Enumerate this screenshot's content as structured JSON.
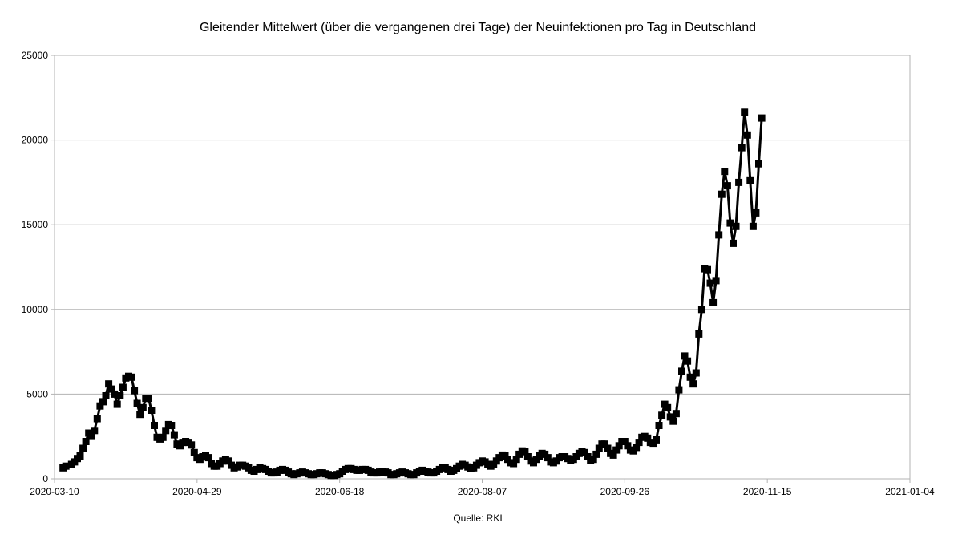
{
  "chart_data": {
    "type": "line",
    "title": "Gleitender Mittelwert (über die vergangenen drei Tage) der Neuinfektionen pro Tag in Deutschland",
    "xlabel": "",
    "ylabel": "",
    "source": "Quelle: RKI",
    "xlim": [
      "2020-03-10",
      "2021-01-04"
    ],
    "ylim": [
      0,
      25000
    ],
    "x_ticks": [
      "2020-03-10",
      "2020-04-29",
      "2020-06-18",
      "2020-08-07",
      "2020-09-26",
      "2020-11-15",
      "2021-01-04"
    ],
    "y_ticks": [
      0,
      5000,
      10000,
      15000,
      20000,
      25000
    ],
    "grid": {
      "horizontal": true,
      "vertical": false
    },
    "legend": "none",
    "series_color": "#000000",
    "series": [
      {
        "values": [
          {
            "x": "2020-03-13",
            "y": 650
          },
          {
            "x": "2020-03-14",
            "y": 750
          },
          {
            "x": "2020-03-16",
            "y": 850
          },
          {
            "x": "2020-03-17",
            "y": 1000
          },
          {
            "x": "2020-03-18",
            "y": 1200
          },
          {
            "x": "2020-03-19",
            "y": 1350
          },
          {
            "x": "2020-03-20",
            "y": 1800
          },
          {
            "x": "2020-03-21",
            "y": 2200
          },
          {
            "x": "2020-03-22",
            "y": 2700
          },
          {
            "x": "2020-03-23",
            "y": 2550
          },
          {
            "x": "2020-03-24",
            "y": 2850
          },
          {
            "x": "2020-03-25",
            "y": 3550
          },
          {
            "x": "2020-03-26",
            "y": 4300
          },
          {
            "x": "2020-03-27",
            "y": 4550
          },
          {
            "x": "2020-03-28",
            "y": 4900
          },
          {
            "x": "2020-03-29",
            "y": 5600
          },
          {
            "x": "2020-03-30",
            "y": 5300
          },
          {
            "x": "2020-03-31",
            "y": 5000
          },
          {
            "x": "2020-04-01",
            "y": 4400
          },
          {
            "x": "2020-04-02",
            "y": 4900
          },
          {
            "x": "2020-04-03",
            "y": 5400
          },
          {
            "x": "2020-04-04",
            "y": 5950
          },
          {
            "x": "2020-04-05",
            "y": 6050
          },
          {
            "x": "2020-04-06",
            "y": 6000
          },
          {
            "x": "2020-04-07",
            "y": 5200
          },
          {
            "x": "2020-04-08",
            "y": 4450
          },
          {
            "x": "2020-04-09",
            "y": 3800
          },
          {
            "x": "2020-04-10",
            "y": 4200
          },
          {
            "x": "2020-04-11",
            "y": 4750
          },
          {
            "x": "2020-04-12",
            "y": 4750
          },
          {
            "x": "2020-04-13",
            "y": 4050
          },
          {
            "x": "2020-04-14",
            "y": 3150
          },
          {
            "x": "2020-04-15",
            "y": 2450
          },
          {
            "x": "2020-04-16",
            "y": 2350
          },
          {
            "x": "2020-04-17",
            "y": 2450
          },
          {
            "x": "2020-04-18",
            "y": 2850
          },
          {
            "x": "2020-04-19",
            "y": 3200
          },
          {
            "x": "2020-04-20",
            "y": 3150
          },
          {
            "x": "2020-04-21",
            "y": 2600
          },
          {
            "x": "2020-04-22",
            "y": 2050
          },
          {
            "x": "2020-04-23",
            "y": 1950
          },
          {
            "x": "2020-04-24",
            "y": 2150
          },
          {
            "x": "2020-04-25",
            "y": 2200
          },
          {
            "x": "2020-04-26",
            "y": 2150
          },
          {
            "x": "2020-04-27",
            "y": 2000
          },
          {
            "x": "2020-04-28",
            "y": 1550
          },
          {
            "x": "2020-04-29",
            "y": 1250
          },
          {
            "x": "2020-04-30",
            "y": 1150
          },
          {
            "x": "2020-05-01",
            "y": 1300
          },
          {
            "x": "2020-05-02",
            "y": 1350
          },
          {
            "x": "2020-05-03",
            "y": 1250
          },
          {
            "x": "2020-05-04",
            "y": 900
          },
          {
            "x": "2020-05-05",
            "y": 750
          },
          {
            "x": "2020-05-06",
            "y": 750
          },
          {
            "x": "2020-05-07",
            "y": 900
          },
          {
            "x": "2020-05-08",
            "y": 1050
          },
          {
            "x": "2020-05-09",
            "y": 1150
          },
          {
            "x": "2020-05-10",
            "y": 1050
          },
          {
            "x": "2020-05-11",
            "y": 800
          },
          {
            "x": "2020-05-12",
            "y": 650
          },
          {
            "x": "2020-05-13",
            "y": 700
          },
          {
            "x": "2020-05-14",
            "y": 800
          },
          {
            "x": "2020-05-15",
            "y": 800
          },
          {
            "x": "2020-05-16",
            "y": 750
          },
          {
            "x": "2020-05-17",
            "y": 650
          },
          {
            "x": "2020-05-18",
            "y": 500
          },
          {
            "x": "2020-05-19",
            "y": 450
          },
          {
            "x": "2020-05-20",
            "y": 550
          },
          {
            "x": "2020-05-21",
            "y": 650
          },
          {
            "x": "2020-05-22",
            "y": 600
          },
          {
            "x": "2020-05-23",
            "y": 550
          },
          {
            "x": "2020-05-24",
            "y": 450
          },
          {
            "x": "2020-05-25",
            "y": 350
          },
          {
            "x": "2020-05-26",
            "y": 350
          },
          {
            "x": "2020-05-27",
            "y": 400
          },
          {
            "x": "2020-05-28",
            "y": 500
          },
          {
            "x": "2020-05-29",
            "y": 550
          },
          {
            "x": "2020-05-30",
            "y": 500
          },
          {
            "x": "2020-05-31",
            "y": 400
          },
          {
            "x": "2020-06-01",
            "y": 300
          },
          {
            "x": "2020-06-02",
            "y": 250
          },
          {
            "x": "2020-06-03",
            "y": 300
          },
          {
            "x": "2020-06-04",
            "y": 350
          },
          {
            "x": "2020-06-05",
            "y": 400
          },
          {
            "x": "2020-06-06",
            "y": 350
          },
          {
            "x": "2020-06-07",
            "y": 300
          },
          {
            "x": "2020-06-08",
            "y": 250
          },
          {
            "x": "2020-06-09",
            "y": 250
          },
          {
            "x": "2020-06-10",
            "y": 300
          },
          {
            "x": "2020-06-11",
            "y": 350
          },
          {
            "x": "2020-06-12",
            "y": 350
          },
          {
            "x": "2020-06-13",
            "y": 300
          },
          {
            "x": "2020-06-14",
            "y": 250
          },
          {
            "x": "2020-06-15",
            "y": 200
          },
          {
            "x": "2020-06-16",
            "y": 200
          },
          {
            "x": "2020-06-17",
            "y": 250
          },
          {
            "x": "2020-06-18",
            "y": 300
          },
          {
            "x": "2020-06-19",
            "y": 450
          },
          {
            "x": "2020-06-20",
            "y": 550
          },
          {
            "x": "2020-06-21",
            "y": 600
          },
          {
            "x": "2020-06-22",
            "y": 600
          },
          {
            "x": "2020-06-23",
            "y": 550
          },
          {
            "x": "2020-06-24",
            "y": 500
          },
          {
            "x": "2020-06-25",
            "y": 500
          },
          {
            "x": "2020-06-26",
            "y": 550
          },
          {
            "x": "2020-06-27",
            "y": 550
          },
          {
            "x": "2020-06-28",
            "y": 500
          },
          {
            "x": "2020-06-29",
            "y": 400
          },
          {
            "x": "2020-06-30",
            "y": 350
          },
          {
            "x": "2020-07-01",
            "y": 350
          },
          {
            "x": "2020-07-02",
            "y": 400
          },
          {
            "x": "2020-07-03",
            "y": 450
          },
          {
            "x": "2020-07-04",
            "y": 400
          },
          {
            "x": "2020-07-05",
            "y": 350
          },
          {
            "x": "2020-07-06",
            "y": 250
          },
          {
            "x": "2020-07-07",
            "y": 250
          },
          {
            "x": "2020-07-08",
            "y": 300
          },
          {
            "x": "2020-07-09",
            "y": 350
          },
          {
            "x": "2020-07-10",
            "y": 400
          },
          {
            "x": "2020-07-11",
            "y": 350
          },
          {
            "x": "2020-07-12",
            "y": 300
          },
          {
            "x": "2020-07-13",
            "y": 250
          },
          {
            "x": "2020-07-14",
            "y": 250
          },
          {
            "x": "2020-07-15",
            "y": 350
          },
          {
            "x": "2020-07-16",
            "y": 450
          },
          {
            "x": "2020-07-17",
            "y": 500
          },
          {
            "x": "2020-07-18",
            "y": 450
          },
          {
            "x": "2020-07-19",
            "y": 400
          },
          {
            "x": "2020-07-20",
            "y": 350
          },
          {
            "x": "2020-07-21",
            "y": 350
          },
          {
            "x": "2020-07-22",
            "y": 450
          },
          {
            "x": "2020-07-23",
            "y": 550
          },
          {
            "x": "2020-07-24",
            "y": 650
          },
          {
            "x": "2020-07-25",
            "y": 650
          },
          {
            "x": "2020-07-26",
            "y": 550
          },
          {
            "x": "2020-07-27",
            "y": 450
          },
          {
            "x": "2020-07-28",
            "y": 500
          },
          {
            "x": "2020-07-29",
            "y": 600
          },
          {
            "x": "2020-07-30",
            "y": 750
          },
          {
            "x": "2020-07-31",
            "y": 850
          },
          {
            "x": "2020-08-01",
            "y": 800
          },
          {
            "x": "2020-08-02",
            "y": 700
          },
          {
            "x": "2020-08-03",
            "y": 600
          },
          {
            "x": "2020-08-04",
            "y": 650
          },
          {
            "x": "2020-08-05",
            "y": 800
          },
          {
            "x": "2020-08-06",
            "y": 950
          },
          {
            "x": "2020-08-07",
            "y": 1050
          },
          {
            "x": "2020-08-08",
            "y": 1000
          },
          {
            "x": "2020-08-09",
            "y": 850
          },
          {
            "x": "2020-08-10",
            "y": 750
          },
          {
            "x": "2020-08-11",
            "y": 850
          },
          {
            "x": "2020-08-12",
            "y": 1050
          },
          {
            "x": "2020-08-13",
            "y": 1250
          },
          {
            "x": "2020-08-14",
            "y": 1400
          },
          {
            "x": "2020-08-15",
            "y": 1350
          },
          {
            "x": "2020-08-16",
            "y": 1150
          },
          {
            "x": "2020-08-17",
            "y": 950
          },
          {
            "x": "2020-08-18",
            "y": 900
          },
          {
            "x": "2020-08-19",
            "y": 1150
          },
          {
            "x": "2020-08-20",
            "y": 1450
          },
          {
            "x": "2020-08-21",
            "y": 1650
          },
          {
            "x": "2020-08-22",
            "y": 1600
          },
          {
            "x": "2020-08-23",
            "y": 1300
          },
          {
            "x": "2020-08-24",
            "y": 1050
          },
          {
            "x": "2020-08-25",
            "y": 950
          },
          {
            "x": "2020-08-26",
            "y": 1150
          },
          {
            "x": "2020-08-27",
            "y": 1350
          },
          {
            "x": "2020-08-28",
            "y": 1500
          },
          {
            "x": "2020-08-29",
            "y": 1450
          },
          {
            "x": "2020-08-30",
            "y": 1250
          },
          {
            "x": "2020-08-31",
            "y": 1000
          },
          {
            "x": "2020-09-01",
            "y": 950
          },
          {
            "x": "2020-09-02",
            "y": 1050
          },
          {
            "x": "2020-09-03",
            "y": 1250
          },
          {
            "x": "2020-09-04",
            "y": 1300
          },
          {
            "x": "2020-09-05",
            "y": 1300
          },
          {
            "x": "2020-09-06",
            "y": 1200
          },
          {
            "x": "2020-09-07",
            "y": 1100
          },
          {
            "x": "2020-09-08",
            "y": 1150
          },
          {
            "x": "2020-09-09",
            "y": 1300
          },
          {
            "x": "2020-09-10",
            "y": 1500
          },
          {
            "x": "2020-09-11",
            "y": 1600
          },
          {
            "x": "2020-09-12",
            "y": 1550
          },
          {
            "x": "2020-09-13",
            "y": 1300
          },
          {
            "x": "2020-09-14",
            "y": 1100
          },
          {
            "x": "2020-09-15",
            "y": 1150
          },
          {
            "x": "2020-09-16",
            "y": 1450
          },
          {
            "x": "2020-09-17",
            "y": 1800
          },
          {
            "x": "2020-09-18",
            "y": 2050
          },
          {
            "x": "2020-09-19",
            "y": 2050
          },
          {
            "x": "2020-09-20",
            "y": 1800
          },
          {
            "x": "2020-09-21",
            "y": 1500
          },
          {
            "x": "2020-09-22",
            "y": 1400
          },
          {
            "x": "2020-09-23",
            "y": 1700
          },
          {
            "x": "2020-09-24",
            "y": 1950
          },
          {
            "x": "2020-09-25",
            "y": 2200
          },
          {
            "x": "2020-09-26",
            "y": 2200
          },
          {
            "x": "2020-09-27",
            "y": 1950
          },
          {
            "x": "2020-09-28",
            "y": 1700
          },
          {
            "x": "2020-09-29",
            "y": 1650
          },
          {
            "x": "2020-09-30",
            "y": 1850
          },
          {
            "x": "2020-10-01",
            "y": 2150
          },
          {
            "x": "2020-10-02",
            "y": 2450
          },
          {
            "x": "2020-10-03",
            "y": 2500
          },
          {
            "x": "2020-10-04",
            "y": 2400
          },
          {
            "x": "2020-10-05",
            "y": 2150
          },
          {
            "x": "2020-10-06",
            "y": 2100
          },
          {
            "x": "2020-10-07",
            "y": 2300
          },
          {
            "x": "2020-10-08",
            "y": 3150
          },
          {
            "x": "2020-10-09",
            "y": 3750
          },
          {
            "x": "2020-10-10",
            "y": 4400
          },
          {
            "x": "2020-10-11",
            "y": 4200
          },
          {
            "x": "2020-10-12",
            "y": 3650
          },
          {
            "x": "2020-10-13",
            "y": 3400
          },
          {
            "x": "2020-10-14",
            "y": 3850
          },
          {
            "x": "2020-10-15",
            "y": 5250
          },
          {
            "x": "2020-10-16",
            "y": 6350
          },
          {
            "x": "2020-10-17",
            "y": 7250
          },
          {
            "x": "2020-10-18",
            "y": 6950
          },
          {
            "x": "2020-10-19",
            "y": 6000
          },
          {
            "x": "2020-10-20",
            "y": 5600
          },
          {
            "x": "2020-10-21",
            "y": 6250
          },
          {
            "x": "2020-10-22",
            "y": 8550
          },
          {
            "x": "2020-10-23",
            "y": 10000
          },
          {
            "x": "2020-10-24",
            "y": 12400
          },
          {
            "x": "2020-10-25",
            "y": 12350
          },
          {
            "x": "2020-10-26",
            "y": 11550
          },
          {
            "x": "2020-10-27",
            "y": 10400
          },
          {
            "x": "2020-10-28",
            "y": 11700
          },
          {
            "x": "2020-10-29",
            "y": 14400
          },
          {
            "x": "2020-10-30",
            "y": 16800
          },
          {
            "x": "2020-10-31",
            "y": 18150
          },
          {
            "x": "2020-11-01",
            "y": 17300
          },
          {
            "x": "2020-11-02",
            "y": 15100
          },
          {
            "x": "2020-11-03",
            "y": 13900
          },
          {
            "x": "2020-11-04",
            "y": 14900
          },
          {
            "x": "2020-11-05",
            "y": 17500
          },
          {
            "x": "2020-11-06",
            "y": 19550
          },
          {
            "x": "2020-11-07",
            "y": 21650
          },
          {
            "x": "2020-11-08",
            "y": 20300
          },
          {
            "x": "2020-11-09",
            "y": 17600
          },
          {
            "x": "2020-11-10",
            "y": 14900
          },
          {
            "x": "2020-11-11",
            "y": 15700
          },
          {
            "x": "2020-11-12",
            "y": 18600
          },
          {
            "x": "2020-11-13",
            "y": 21300
          }
        ]
      }
    ]
  }
}
